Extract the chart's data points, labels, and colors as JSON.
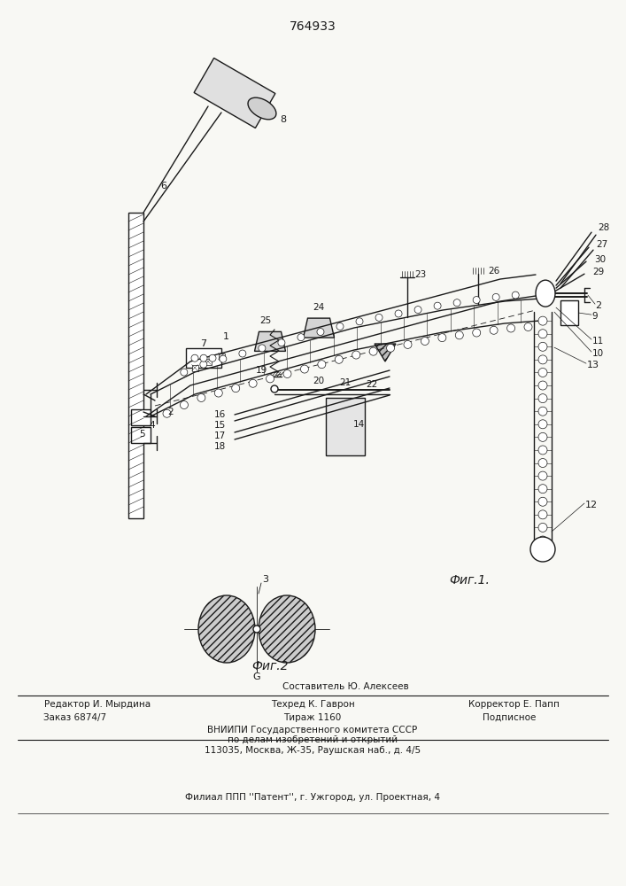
{
  "patent_number": "764933",
  "fig1_caption": "Фиг.1.",
  "fig2_caption": "Фиг.2",
  "footer_line1_left": "Редактор И. Мырдина",
  "footer_line1_center_top": "Составитель Ю. Алексеев",
  "footer_line1_center": "Техред К. Гаврон",
  "footer_line1_right": "Корректор Е. Папп",
  "footer_line2_col1": "Заказ 6874/7",
  "footer_line2_col2": "Тираж 1160",
  "footer_line2_col3": "Подписное",
  "footer_line3": "ВНИИПИ Государственного комитета СССР",
  "footer_line4": "по делам изобретений и открытий",
  "footer_line5": "113035, Москва, Ж-35, Раушская наб., д. 4/5",
  "footer_line6": "Филиал ППП ''Патент'', г. Ужгород, ул. Проектная, 4",
  "bg_color": "#f8f8f4",
  "line_color": "#1a1a1a",
  "fig_width": 7.07,
  "fig_height": 10.0,
  "dpi": 100
}
